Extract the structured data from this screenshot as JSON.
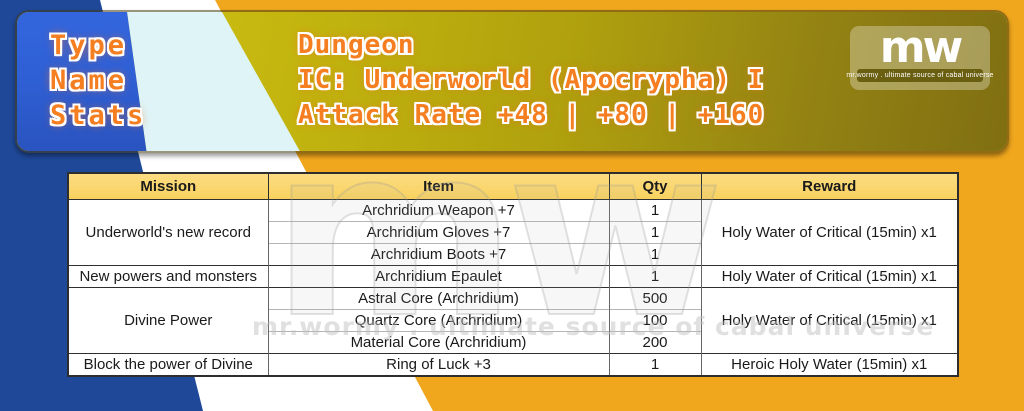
{
  "banner": {
    "left_labels": [
      "Type",
      "Name",
      "Stats"
    ],
    "title_lines": [
      "Dungeon",
      "IC: Underworld (Apocrypha) I",
      "Attack Rate +48 | +80 | +160"
    ],
    "logo": {
      "text": "mw",
      "tagline": "mr.wormy . ultimate source of cabal universe"
    }
  },
  "table": {
    "headers": [
      "Mission",
      "Item",
      "Qty",
      "Reward"
    ],
    "groups": [
      {
        "mission": "Underworld's new record",
        "items": [
          {
            "item": "Archridium Weapon +7",
            "qty": "1"
          },
          {
            "item": "Archridium Gloves +7",
            "qty": "1"
          },
          {
            "item": "Archridium Boots +7",
            "qty": "1"
          }
        ],
        "reward": "Holy Water of Critical (15min) x1"
      },
      {
        "mission": "New powers and monsters",
        "items": [
          {
            "item": "Archridium Epaulet",
            "qty": "1"
          }
        ],
        "reward": "Holy Water of Critical (15min) x1"
      },
      {
        "mission": "Divine Power",
        "items": [
          {
            "item": "Astral Core (Archridium)",
            "qty": "500"
          },
          {
            "item": "Quartz Core (Archridium)",
            "qty": "100"
          },
          {
            "item": "Material Core (Archridium)",
            "qty": "200"
          }
        ],
        "reward": "Holy Water of Critical (15min) x1"
      },
      {
        "mission": "Block the power of Divine",
        "items": [
          {
            "item": "Ring of Luck +3",
            "qty": "1"
          }
        ],
        "reward": "Heroic Holy Water (15min) x1"
      }
    ]
  },
  "watermark": {
    "logo": "mw",
    "tagline": "mr.wormy . ultimate source of cabal universe"
  },
  "colors": {
    "navy": "#1f4898",
    "amber": "#f0a71d",
    "banner_blue": "#2e5ed2",
    "banner_cyan": "#dff4f7",
    "banner_olive": "#b0a10e",
    "accent_orange": "#f57e20",
    "header_gold": "#f8d25f"
  }
}
